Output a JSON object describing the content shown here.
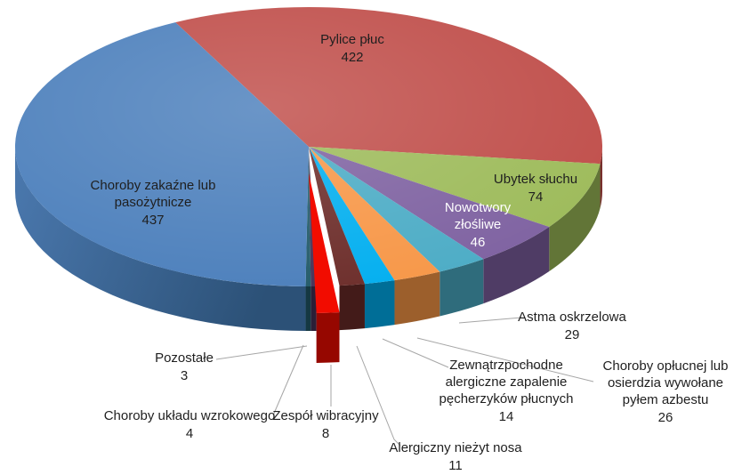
{
  "chart_data": {
    "type": "pie",
    "style": "3d-exploded-slice",
    "title": "",
    "total": 1074,
    "legend_position": "none",
    "background": "#FFFFFF",
    "label_format": "name + value",
    "slices": [
      {
        "label": "Pylice płuc",
        "value": 422,
        "color": "#BF4C48",
        "label_color": "#1f1f1f"
      },
      {
        "label": "Ubytek słuchu",
        "value": 74,
        "color": "#9CBA58",
        "label_color": "#1f1f1f"
      },
      {
        "label": "Nowotwory złośliwe",
        "value": 46,
        "color": "#7D60A0",
        "label_color": "#FFFFFF"
      },
      {
        "label": "Astma oskrzelowa",
        "value": 29,
        "color": "#4AABC5",
        "label_color": "#1f1f1f"
      },
      {
        "label": "Choroby opłucnej lub osierdzia wywołane pyłem azbestu",
        "value": 26,
        "color": "#F79646",
        "label_color": "#1f1f1f"
      },
      {
        "label": "Zewnątrzpochodne alergiczne zapalenie pęcherzyków płucnych",
        "value": 14,
        "color": "#00AEEF",
        "label_color": "#1f1f1f"
      },
      {
        "label": "Alergiczny nieżyt nosa",
        "value": 11,
        "color": "#6B2B28",
        "label_color": "#1f1f1f"
      },
      {
        "label": "Zespół wibracyjny",
        "value": 8,
        "color": "#F20C00",
        "label_color": "#1f1f1f",
        "exploded": true
      },
      {
        "label": "Choroby układu wzrokowego",
        "value": 4,
        "color": "#443157",
        "label_color": "#1f1f1f"
      },
      {
        "label": "Pozostałe",
        "value": 3,
        "color": "#215968",
        "label_color": "#1f1f1f"
      },
      {
        "label": "Choroby zakaźne lub pasożytnicze",
        "value": 437,
        "color": "#4A7EBB",
        "label_color": "#1f1f1f"
      }
    ],
    "leader_line_color": "#A6A6A6"
  }
}
